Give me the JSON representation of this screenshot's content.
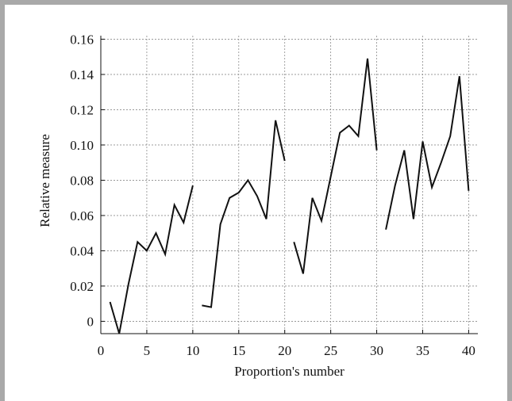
{
  "chart_data": {
    "type": "line",
    "xlabel": "Proportion's number",
    "ylabel": "Relative measure",
    "xlim": [
      0,
      41
    ],
    "ylim": [
      -0.007,
      0.162
    ],
    "xticks": [
      0,
      5,
      10,
      15,
      20,
      25,
      30,
      35,
      40
    ],
    "xtick_labels": [
      "0",
      "5",
      "10",
      "15",
      "20",
      "25",
      "30",
      "35",
      "40"
    ],
    "yticks": [
      0,
      0.02,
      0.04,
      0.06,
      0.08,
      0.1,
      0.12,
      0.14,
      0.16
    ],
    "ytick_labels": [
      "0",
      "0.02",
      "0.04",
      "0.06",
      "0.08",
      "0.10",
      "0.12",
      "0.14",
      "0.16"
    ],
    "grid": true,
    "series": [
      {
        "x": [
          1,
          2,
          3,
          4,
          5,
          6,
          7,
          8,
          9,
          10
        ],
        "values": [
          0.011,
          -0.007,
          0.021,
          0.045,
          0.04,
          0.05,
          0.038,
          0.066,
          0.056,
          0.077
        ]
      },
      {
        "x": [
          11,
          12,
          13,
          14,
          15,
          16,
          17,
          18,
          19,
          20
        ],
        "values": [
          0.009,
          0.008,
          0.055,
          0.07,
          0.073,
          0.08,
          0.071,
          0.058,
          0.114,
          0.091
        ]
      },
      {
        "x": [
          21,
          22,
          23,
          24,
          25,
          26,
          27,
          28,
          29,
          30
        ],
        "values": [
          0.045,
          0.027,
          0.07,
          0.057,
          0.082,
          0.107,
          0.111,
          0.105,
          0.149,
          0.097
        ]
      },
      {
        "x": [
          31,
          32,
          33,
          34,
          35,
          36,
          37,
          38,
          39,
          40
        ],
        "values": [
          0.052,
          0.077,
          0.097,
          0.058,
          0.102,
          0.076,
          0.09,
          0.105,
          0.139,
          0.074
        ]
      }
    ]
  }
}
